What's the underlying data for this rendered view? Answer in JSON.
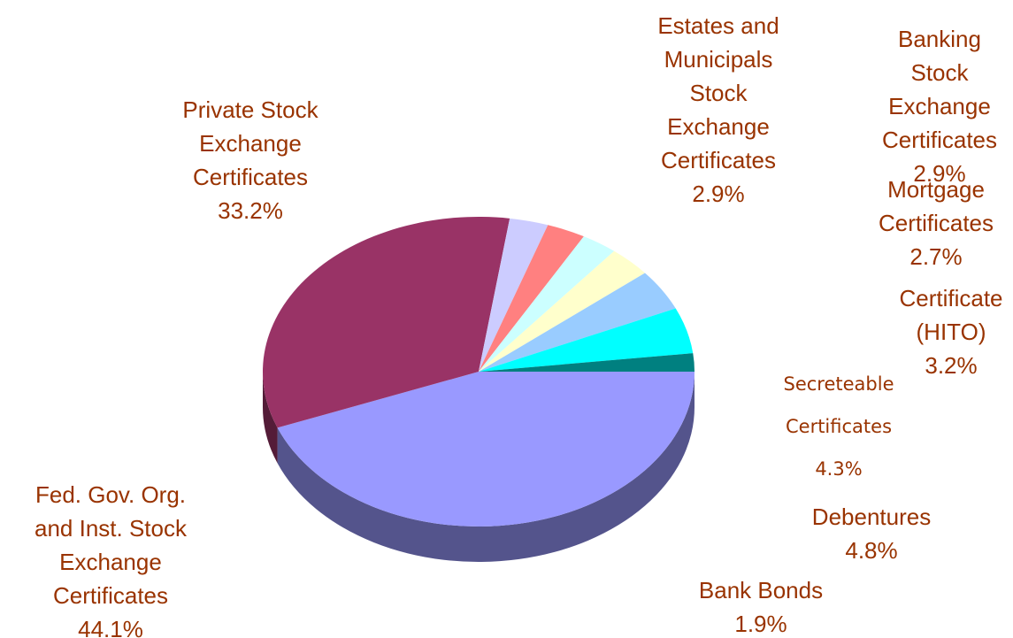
{
  "chart_data": {
    "type": "pie3d",
    "categories": [
      "Fed. Gov. Org.\nand Inst. Stock\nExchange\nCertificates",
      "Private Stock\nExchange\nCertificates",
      "Estates and\nMunicipals\nStock\nExchange\nCertificates",
      "Banking Stock\nExchange\nCertificates",
      "Mortgage\nCertificates",
      "Certificate\n(HITO)",
      "Secreteable\nCertificates",
      "Debentures",
      "Bank Bonds"
    ],
    "values": [
      44.1,
      33.2,
      2.9,
      2.9,
      2.7,
      3.2,
      4.3,
      4.8,
      1.9
    ],
    "value_labels": [
      "44.1%",
      "33.2%",
      "2.9%",
      "2.9%",
      "2.7%",
      "3.2%",
      "4.3%",
      "4.8%",
      "1.9%"
    ],
    "colors": [
      "#9999ff",
      "#993366",
      "#ccccff",
      "#ff8080",
      "#ccffff",
      "#ffffcc",
      "#99ccff",
      "#00ffff",
      "#008080"
    ]
  }
}
